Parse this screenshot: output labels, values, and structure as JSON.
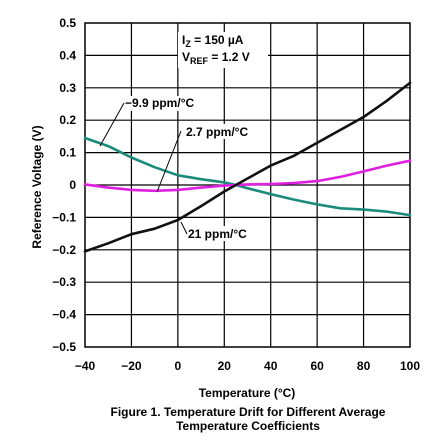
{
  "chart_data": {
    "type": "line",
    "xlabel": "Temperature (°C)",
    "ylabel": "Reference Voltage (V)",
    "xlim": [
      -40,
      100
    ],
    "ylim": [
      -0.5,
      0.5
    ],
    "x_ticks": [
      "−40",
      "−20",
      "0",
      "20",
      "40",
      "60",
      "80",
      "100"
    ],
    "y_ticks": [
      "0.5",
      "0.4",
      "0.3",
      "0.2",
      "0.1",
      "0",
      "−0.1",
      "−0.2",
      "−0.3",
      "−0.4",
      "−0.5"
    ],
    "grid": true,
    "conditions": {
      "iz_text": "150 µA",
      "vref_text": "= 1.2 V"
    },
    "series": [
      {
        "name": "−9.9 ppm/°C",
        "color": "#1a8a7a",
        "x": [
          -40,
          -30,
          -20,
          -10,
          0,
          10,
          20,
          25,
          30,
          40,
          50,
          60,
          70,
          80,
          90,
          100
        ],
        "y": [
          0.145,
          0.12,
          0.085,
          0.055,
          0.03,
          0.018,
          0.008,
          0.0,
          -0.01,
          -0.028,
          -0.045,
          -0.06,
          -0.072,
          -0.076,
          -0.082,
          -0.093
        ]
      },
      {
        "name": "2.7 ppm/°C",
        "color": "#e020e0",
        "x": [
          -40,
          -30,
          -20,
          -10,
          0,
          10,
          20,
          25,
          30,
          40,
          50,
          60,
          70,
          80,
          90,
          100
        ],
        "y": [
          0.002,
          -0.008,
          -0.015,
          -0.018,
          -0.015,
          -0.008,
          -0.002,
          0.0,
          0.002,
          0.003,
          0.006,
          0.012,
          0.025,
          0.042,
          0.06,
          0.075
        ]
      },
      {
        "name": "21 ppm/°C",
        "color": "#111111",
        "x": [
          -40,
          -30,
          -20,
          -10,
          0,
          10,
          20,
          25,
          30,
          40,
          50,
          60,
          70,
          80,
          90,
          100
        ],
        "y": [
          -0.205,
          -0.18,
          -0.152,
          -0.135,
          -0.108,
          -0.065,
          -0.02,
          0.0,
          0.02,
          0.06,
          0.09,
          0.13,
          0.17,
          0.21,
          0.26,
          0.315
        ]
      }
    ],
    "annotations": [
      "−9.9 ppm/°C",
      "2.7 ppm/°C",
      "21 ppm/°C"
    ],
    "caption_line1": "Figure 1. Temperature Drift for Different Average",
    "caption_line2": "Temperature Coefficients"
  }
}
